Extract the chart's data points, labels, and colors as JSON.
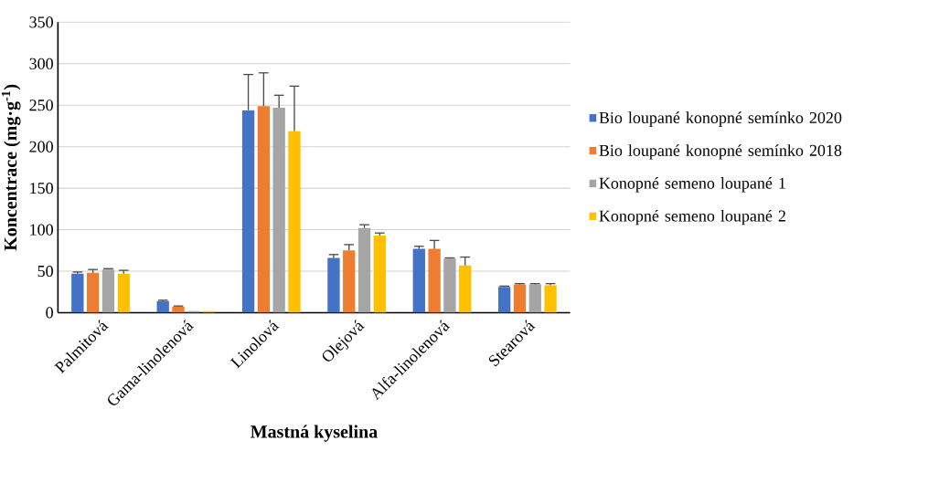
{
  "chart_data": {
    "type": "bar",
    "xlabel": "Mastná kyselina",
    "ylabel": "Koncentrace (mg·g$^{-1}$)",
    "categories": [
      "Palmitová",
      "Gama-linolenová",
      "Linolová",
      "Olejová",
      "Alfa-linolenová",
      "Stearová"
    ],
    "series": [
      {
        "name": "Bio loupané konopné semínko 2020",
        "color": "#4472c4",
        "values": [
          47,
          14,
          244,
          66,
          77,
          31
        ],
        "errors": [
          [
            47,
            49
          ],
          [
            14,
            15
          ],
          [
            244,
            287
          ],
          [
            66,
            70
          ],
          [
            77,
            80
          ],
          [
            31,
            32
          ]
        ]
      },
      {
        "name": "Bio loupané konopné semínko 2018",
        "color": "#ed7d31",
        "values": [
          48,
          7,
          249,
          75,
          77,
          34
        ],
        "errors": [
          [
            48,
            52
          ],
          [
            7,
            8
          ],
          [
            249,
            289
          ],
          [
            75,
            82
          ],
          [
            77,
            87
          ],
          [
            34,
            35
          ]
        ]
      },
      {
        "name": "Konopné semeno loupané 1",
        "color": "#a5a5a5",
        "values": [
          52,
          2,
          247,
          102,
          65,
          34
        ],
        "errors": [
          [
            52,
            53
          ],
          null,
          [
            247,
            262
          ],
          [
            102,
            106
          ],
          [
            65,
            66
          ],
          [
            34,
            35
          ]
        ]
      },
      {
        "name": "Konopné semeno loupané 2",
        "color": "#ffc000",
        "values": [
          47,
          2,
          219,
          93,
          57,
          33
        ],
        "errors": [
          [
            47,
            51
          ],
          null,
          [
            219,
            273
          ],
          [
            93,
            96
          ],
          [
            57,
            67
          ],
          [
            33,
            35
          ]
        ]
      }
    ],
    "ylim": [
      0,
      350
    ],
    "yticks": [
      0,
      50,
      100,
      150,
      200,
      250,
      300,
      350
    ],
    "grid": "y",
    "legend": "right"
  }
}
